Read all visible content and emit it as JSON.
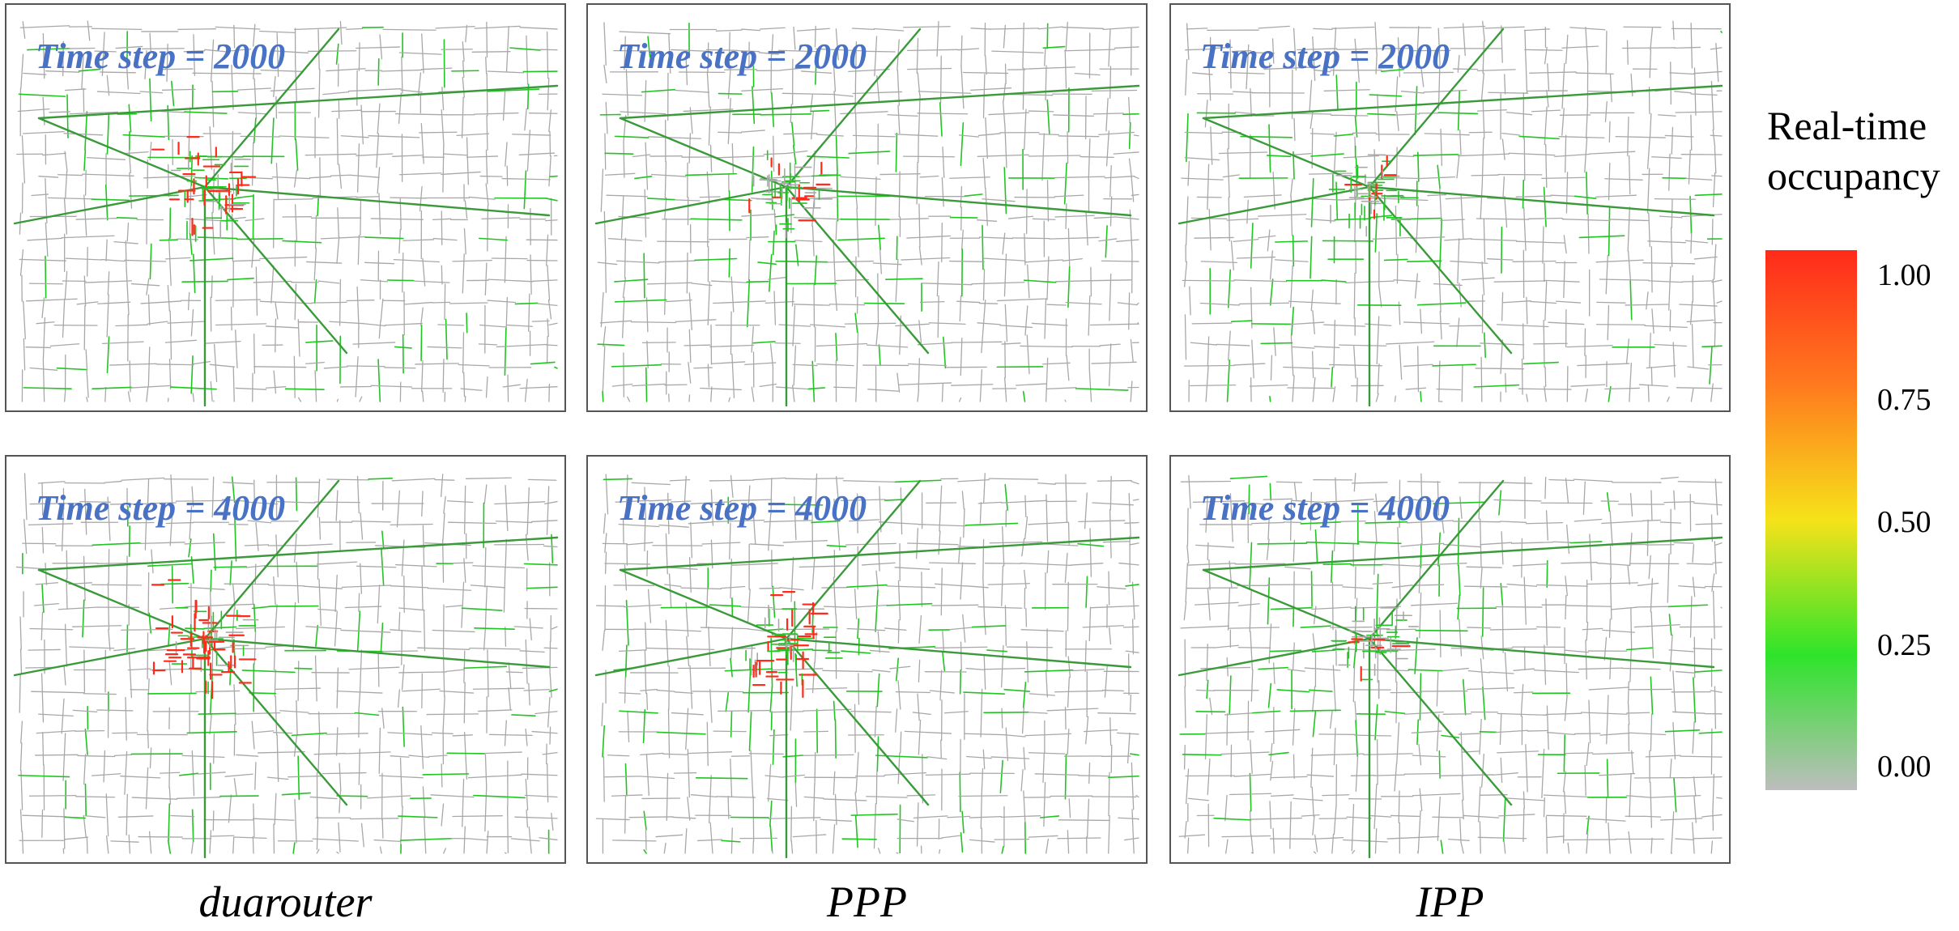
{
  "colors": {
    "title_blue": "#4a72c4",
    "road_gray": "#a8a8a8",
    "low": "#22c422",
    "mid": "#f6e21a",
    "high": "#ff2a1a"
  },
  "panels": [
    {
      "title": "Time step = 2000",
      "method": "duarouter",
      "congestion": "medium"
    },
    {
      "title": "Time step = 2000",
      "method": "PPP",
      "congestion": "low"
    },
    {
      "title": "Time step = 2000",
      "method": "IPP",
      "congestion": "low"
    },
    {
      "title": "Time step = 4000",
      "method": "duarouter",
      "congestion": "high"
    },
    {
      "title": "Time step = 4000",
      "method": "PPP",
      "congestion": "medium"
    },
    {
      "title": "Time step = 4000",
      "method": "IPP",
      "congestion": "low"
    }
  ],
  "columns": [
    "duarouter",
    "PPP",
    "IPP"
  ],
  "legend": {
    "title_line1": "Real-time",
    "title_line2": "occupancy",
    "ticks": [
      "1.00",
      "0.75",
      "0.50",
      "0.25",
      "0.00"
    ],
    "scale_min": 0.0,
    "scale_max": 1.0
  }
}
